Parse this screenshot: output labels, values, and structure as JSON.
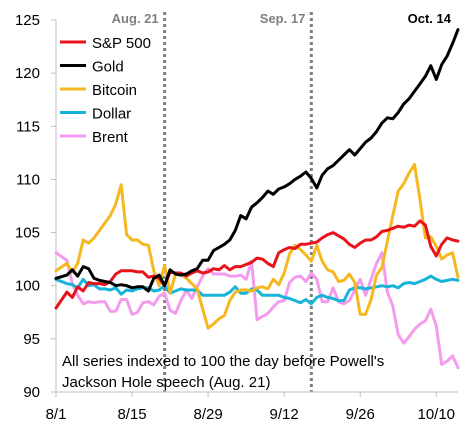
{
  "chart_data": {
    "type": "line",
    "title": "",
    "xlabel": "",
    "ylabel": "",
    "ylim": [
      90,
      125
    ],
    "y_ticks": [
      90,
      95,
      100,
      105,
      110,
      115,
      120,
      125
    ],
    "x_ticks": [
      {
        "day": 0,
        "label": "8/1"
      },
      {
        "day": 14,
        "label": "8/15"
      },
      {
        "day": 28,
        "label": "8/29"
      },
      {
        "day": 42,
        "label": "9/12"
      },
      {
        "day": 56,
        "label": "9/26"
      },
      {
        "day": 70,
        "label": "10/10"
      }
    ],
    "xlim": [
      0,
      74
    ],
    "grid": false,
    "legend_position": "top-left",
    "events": [
      {
        "day": 20,
        "label": "Aug. 21",
        "label_color": "#7f7f7f"
      },
      {
        "day": 47,
        "label": "Sep. 17",
        "label_color": "#7f7f7f"
      },
      {
        "day": 74,
        "label": "Oct. 14",
        "label_color": "#000000"
      }
    ],
    "annotation": [
      "All series indexed to 100 the day before Powell's",
      "Jackson Hole speech (Aug. 21)"
    ],
    "series": [
      {
        "name": "S&P 500",
        "color": "#e8141c",
        "days": [
          0,
          2,
          3,
          4,
          5,
          6,
          7,
          8,
          9,
          10,
          11,
          12,
          13,
          14,
          15,
          16,
          17,
          18,
          19,
          20,
          21,
          22,
          23,
          24,
          25,
          26,
          27,
          28,
          29,
          30,
          31,
          32,
          33,
          34,
          35,
          36,
          37,
          38,
          39,
          40,
          41,
          42,
          43,
          44,
          45,
          46,
          47,
          48,
          49,
          50,
          51,
          52,
          53,
          54,
          55,
          56,
          57,
          58,
          59,
          60,
          61,
          62,
          63,
          64,
          65,
          66,
          67,
          68,
          69,
          70,
          71,
          72,
          73,
          74
        ],
        "values": [
          97.9,
          99.4,
          98.9,
          99.9,
          99.5,
          100.3,
          100.2,
          100.2,
          100.1,
          100.4,
          101.1,
          101.4,
          101.4,
          101.4,
          101.3,
          101.3,
          100.8,
          100.9,
          100.7,
          100.0,
          101.3,
          101.2,
          101.2,
          100.9,
          101.2,
          101.4,
          101.2,
          101.3,
          101.6,
          101.5,
          101.9,
          101.5,
          101.8,
          101.8,
          102.0,
          102.2,
          102.6,
          102.5,
          102.1,
          101.8,
          103.1,
          103.4,
          103.6,
          103.5,
          103.9,
          103.9,
          104.0,
          104.1,
          104.5,
          104.8,
          105.0,
          104.7,
          104.4,
          103.9,
          103.6,
          104.0,
          104.3,
          104.3,
          104.6,
          105.1,
          105.2,
          105.4,
          105.6,
          105.5,
          105.7,
          105.6,
          106.1,
          105.7,
          103.7,
          102.8,
          103.9,
          104.5,
          104.3,
          104.2
        ]
      },
      {
        "name": "Gold",
        "color": "#000000",
        "days": [
          0,
          2,
          3,
          4,
          5,
          6,
          7,
          8,
          9,
          10,
          11,
          12,
          13,
          14,
          15,
          16,
          17,
          18,
          19,
          20,
          21,
          22,
          23,
          24,
          25,
          26,
          27,
          28,
          29,
          30,
          31,
          32,
          33,
          34,
          35,
          36,
          37,
          38,
          39,
          40,
          41,
          42,
          43,
          44,
          45,
          46,
          47,
          48,
          49,
          50,
          51,
          52,
          53,
          54,
          55,
          56,
          57,
          58,
          59,
          60,
          61,
          62,
          63,
          64,
          65,
          66,
          67,
          68,
          69,
          70,
          71,
          72,
          73,
          74
        ],
        "values": [
          100.7,
          101.0,
          101.5,
          100.9,
          101.8,
          101.6,
          100.7,
          100.5,
          100.4,
          100.3,
          100.0,
          100.1,
          100.0,
          99.8,
          99.9,
          99.9,
          99.5,
          100.7,
          101.0,
          100.0,
          101.5,
          101.1,
          101.0,
          101.1,
          101.4,
          101.6,
          102.4,
          102.4,
          103.3,
          103.6,
          103.9,
          104.3,
          105.2,
          106.6,
          106.3,
          107.4,
          107.8,
          108.3,
          108.9,
          108.6,
          109.1,
          109.3,
          109.6,
          110.0,
          110.3,
          110.7,
          110.1,
          109.2,
          110.4,
          111.0,
          111.3,
          111.8,
          112.3,
          112.8,
          112.3,
          112.9,
          113.5,
          113.9,
          114.5,
          115.3,
          115.8,
          115.7,
          116.3,
          117.1,
          117.6,
          118.3,
          119.0,
          119.7,
          120.7,
          119.4,
          120.8,
          121.6,
          122.8,
          124.1
        ]
      },
      {
        "name": "Bitcoin",
        "color": "#f5b820",
        "days": [
          0,
          2,
          3,
          4,
          5,
          6,
          7,
          8,
          9,
          10,
          11,
          12,
          13,
          14,
          15,
          16,
          17,
          18,
          19,
          20,
          21,
          22,
          23,
          24,
          25,
          26,
          27,
          28,
          29,
          30,
          31,
          32,
          33,
          34,
          35,
          36,
          37,
          38,
          39,
          40,
          41,
          42,
          43,
          44,
          45,
          46,
          47,
          48,
          49,
          50,
          51,
          52,
          53,
          54,
          55,
          56,
          57,
          58,
          59,
          60,
          61,
          62,
          63,
          64,
          65,
          66,
          67,
          68,
          69,
          70,
          71,
          72,
          73,
          74
        ],
        "values": [
          101.4,
          102.1,
          101.3,
          102.1,
          104.3,
          104.0,
          104.5,
          105.2,
          105.9,
          106.6,
          107.7,
          109.5,
          104.8,
          104.3,
          104.3,
          103.9,
          103.8,
          101.4,
          100.0,
          101.9,
          99.3,
          101.1,
          101.1,
          100.7,
          100.2,
          99.7,
          97.8,
          96.0,
          96.4,
          96.9,
          97.2,
          98.6,
          99.4,
          99.6,
          99.6,
          99.5,
          99.8,
          99.9,
          99.7,
          100.6,
          100.1,
          101.2,
          103.0,
          103.8,
          103.4,
          102.9,
          102.3,
          103.8,
          102.3,
          101.5,
          101.3,
          100.4,
          100.5,
          101.1,
          100.3,
          97.3,
          97.3,
          98.7,
          101.0,
          101.7,
          104.2,
          106.6,
          108.9,
          109.6,
          110.6,
          111.4,
          108.1,
          104.5,
          104.6,
          103.7,
          102.5,
          102.9,
          103.1,
          100.8
        ]
      },
      {
        "name": "Dollar",
        "color": "#17b3d9",
        "days": [
          0,
          2,
          3,
          4,
          5,
          6,
          7,
          8,
          9,
          10,
          11,
          12,
          13,
          14,
          15,
          16,
          17,
          18,
          19,
          20,
          21,
          22,
          23,
          24,
          25,
          26,
          27,
          28,
          29,
          30,
          31,
          32,
          33,
          34,
          35,
          36,
          37,
          38,
          39,
          40,
          41,
          42,
          43,
          44,
          45,
          46,
          47,
          48,
          49,
          50,
          51,
          52,
          53,
          54,
          55,
          56,
          57,
          58,
          59,
          60,
          61,
          62,
          63,
          64,
          65,
          66,
          67,
          68,
          69,
          70,
          71,
          72,
          73,
          74
        ],
        "values": [
          100.6,
          100.2,
          100.1,
          99.8,
          100.6,
          100.0,
          100.1,
          99.7,
          99.7,
          99.6,
          99.8,
          99.2,
          99.6,
          99.5,
          99.7,
          99.8,
          99.8,
          99.5,
          99.6,
          100.0,
          99.3,
          99.5,
          99.7,
          99.6,
          99.6,
          99.6,
          99.1,
          99.1,
          99.1,
          99.1,
          99.1,
          99.4,
          99.9,
          99.3,
          99.3,
          99.7,
          99.6,
          99.1,
          99.1,
          99.1,
          99.1,
          98.9,
          98.8,
          98.6,
          98.4,
          98.7,
          98.3,
          98.9,
          99.1,
          98.9,
          98.8,
          98.6,
          98.6,
          99.6,
          99.8,
          99.8,
          99.7,
          99.8,
          99.9,
          100.0,
          99.9,
          100.0,
          99.8,
          100.2,
          100.3,
          100.2,
          100.4,
          100.6,
          100.9,
          100.6,
          100.4,
          100.5,
          100.6,
          100.5
        ]
      },
      {
        "name": "Brent",
        "color": "#f39bec",
        "days": [
          0,
          2,
          3,
          4,
          5,
          6,
          7,
          8,
          9,
          10,
          11,
          12,
          13,
          14,
          15,
          16,
          17,
          18,
          19,
          20,
          21,
          22,
          23,
          24,
          25,
          26,
          27,
          28,
          29,
          30,
          31,
          32,
          33,
          34,
          35,
          36,
          37,
          38,
          39,
          40,
          41,
          42,
          43,
          44,
          45,
          46,
          47,
          48,
          49,
          50,
          51,
          52,
          53,
          54,
          55,
          56,
          57,
          58,
          59,
          60,
          61,
          62,
          63,
          64,
          65,
          66,
          67,
          68,
          69,
          70,
          71,
          72,
          73,
          74
        ],
        "values": [
          103.1,
          102.4,
          100.2,
          99.1,
          98.3,
          98.5,
          98.4,
          98.5,
          98.5,
          97.6,
          97.6,
          98.7,
          98.7,
          97.3,
          97.5,
          98.4,
          98.5,
          98.2,
          99.0,
          99.3,
          97.7,
          97.4,
          98.6,
          99.6,
          98.8,
          99.9,
          100.9,
          101.6,
          101.1,
          101.1,
          101.1,
          100.9,
          100.9,
          101.0,
          100.6,
          102.3,
          96.8,
          97.1,
          97.4,
          98.0,
          98.5,
          98.6,
          100.3,
          100.8,
          100.9,
          100.4,
          101.2,
          100.6,
          98.5,
          98.5,
          99.8,
          98.5,
          98.3,
          98.6,
          99.6,
          100.6,
          99.1,
          100.6,
          102.1,
          103.1,
          99.4,
          98.1,
          95.4,
          94.6,
          95.2,
          95.9,
          96.4,
          96.7,
          97.8,
          96.2,
          92.6,
          92.9,
          93.4,
          92.3
        ]
      }
    ]
  }
}
